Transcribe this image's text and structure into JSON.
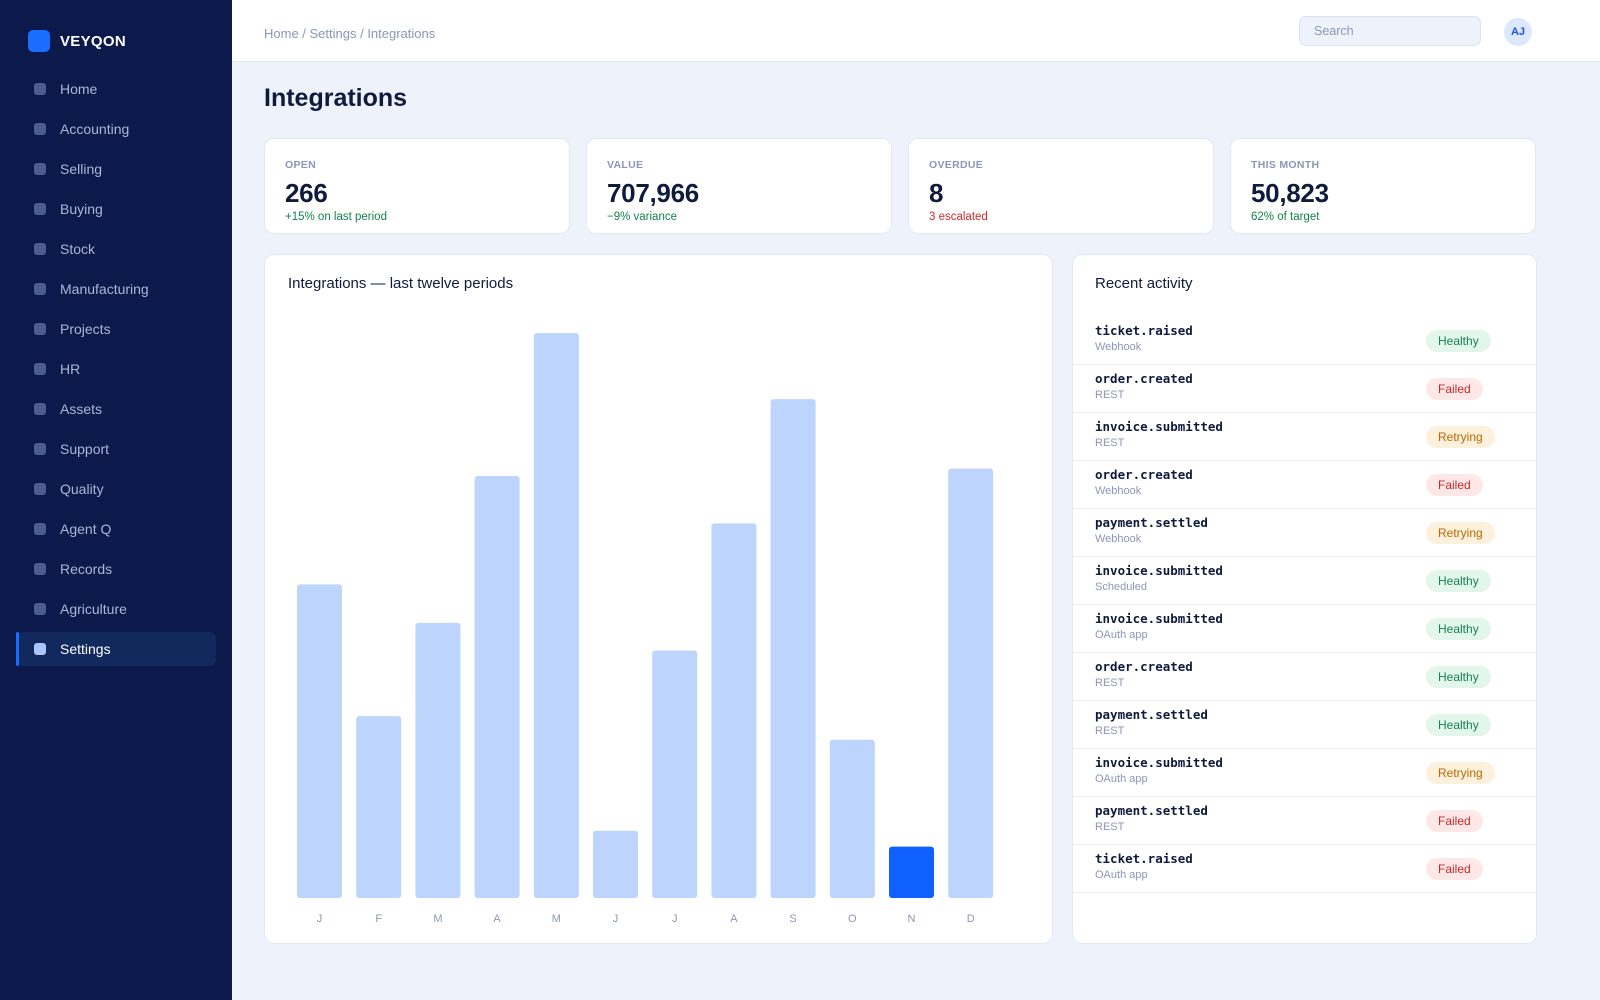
{
  "app": {
    "brand": "VEYQON"
  },
  "sidebar": {
    "items": [
      {
        "label": "Home"
      },
      {
        "label": "Accounting"
      },
      {
        "label": "Selling"
      },
      {
        "label": "Buying"
      },
      {
        "label": "Stock"
      },
      {
        "label": "Manufacturing"
      },
      {
        "label": "Projects"
      },
      {
        "label": "HR"
      },
      {
        "label": "Assets"
      },
      {
        "label": "Support"
      },
      {
        "label": "Quality"
      },
      {
        "label": "Agent Q"
      },
      {
        "label": "Records"
      },
      {
        "label": "Agriculture"
      },
      {
        "label": "Settings",
        "active": true
      }
    ]
  },
  "header": {
    "breadcrumb": "Home / Settings / Integrations",
    "search_placeholder": "Search",
    "avatar_initials": "AJ"
  },
  "page": {
    "title": "Integrations"
  },
  "kpis": [
    {
      "label": "OPEN",
      "value": "266",
      "sub": "+15% on last period",
      "tone": "good"
    },
    {
      "label": "VALUE",
      "value": "707,966",
      "sub": "−9% variance",
      "tone": "good"
    },
    {
      "label": "OVERDUE",
      "value": "8",
      "sub": "3 escalated",
      "tone": "bad"
    },
    {
      "label": "THIS MONTH",
      "value": "50,823",
      "sub": "62% of target",
      "tone": "good"
    }
  ],
  "chart": {
    "title": "Integrations — last twelve periods"
  },
  "chart_data": {
    "type": "bar",
    "title": "Integrations — last twelve periods",
    "categories": [
      "J",
      "F",
      "M",
      "A",
      "M",
      "J",
      "J",
      "A",
      "S",
      "O",
      "N",
      "D"
    ],
    "values": [
      55.5,
      32.2,
      48.7,
      74.7,
      100,
      11.9,
      43.8,
      66.3,
      88.3,
      28.0,
      9.1,
      76.0
    ],
    "highlight_index": 10,
    "ylim": [
      0,
      100
    ],
    "grid": false,
    "colors": {
      "bar": "#bdd4fc",
      "highlight": "#1060ff"
    }
  },
  "activity": {
    "title": "Recent activity",
    "rows": [
      {
        "event": "ticket.raised",
        "source": "Webhook",
        "status": "Healthy"
      },
      {
        "event": "order.created",
        "source": "REST",
        "status": "Failed"
      },
      {
        "event": "invoice.submitted",
        "source": "REST",
        "status": "Retrying"
      },
      {
        "event": "order.created",
        "source": "Webhook",
        "status": "Failed"
      },
      {
        "event": "payment.settled",
        "source": "Webhook",
        "status": "Retrying"
      },
      {
        "event": "invoice.submitted",
        "source": "Scheduled",
        "status": "Healthy"
      },
      {
        "event": "invoice.submitted",
        "source": "OAuth app",
        "status": "Healthy"
      },
      {
        "event": "order.created",
        "source": "REST",
        "status": "Healthy"
      },
      {
        "event": "payment.settled",
        "source": "REST",
        "status": "Healthy"
      },
      {
        "event": "invoice.submitted",
        "source": "OAuth app",
        "status": "Retrying"
      },
      {
        "event": "payment.settled",
        "source": "REST",
        "status": "Failed"
      },
      {
        "event": "ticket.raised",
        "source": "OAuth app",
        "status": "Failed"
      }
    ]
  }
}
